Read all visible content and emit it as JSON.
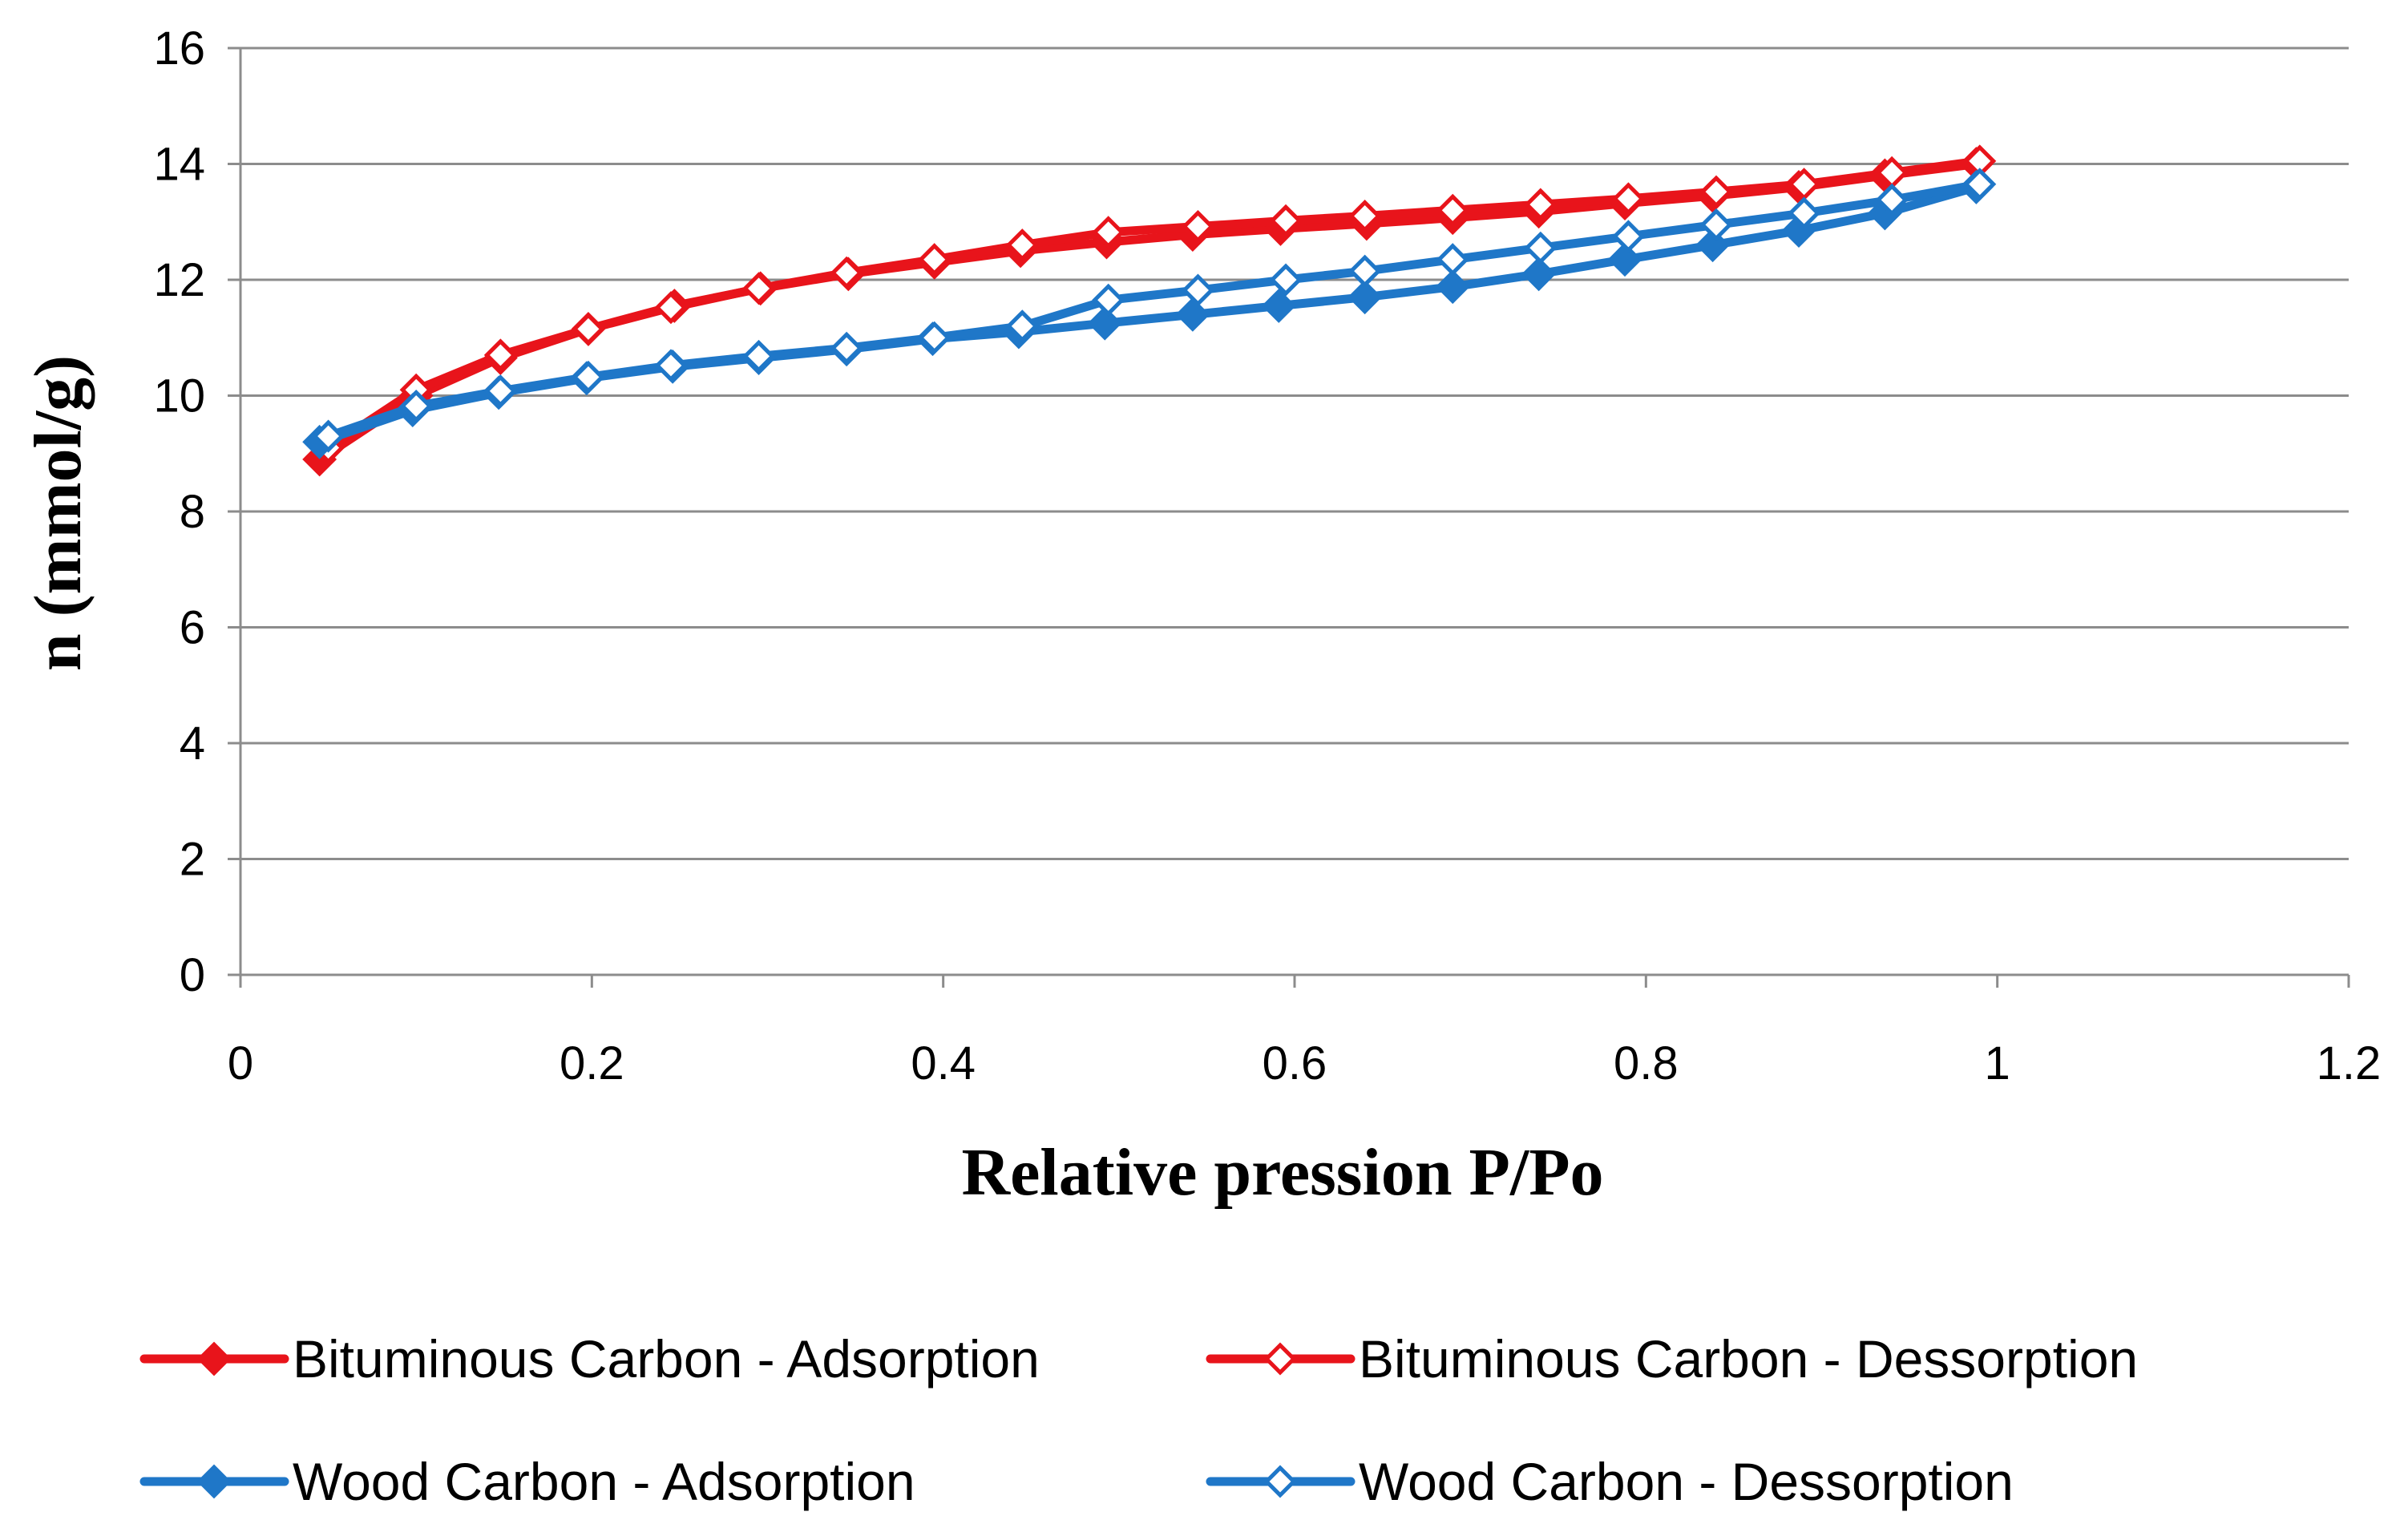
{
  "chart_data": {
    "type": "line",
    "title": "",
    "xlabel": "Relative pression P/Po",
    "ylabel": "n (mmol/g)",
    "xlim": [
      0,
      1.2
    ],
    "ylim": [
      0,
      16
    ],
    "xticks": [
      0,
      0.2,
      0.4,
      0.6,
      0.8,
      1,
      1.2
    ],
    "yticks": [
      0,
      2,
      4,
      6,
      8,
      10,
      12,
      14,
      16
    ],
    "xtick_labels": [
      "0",
      "0.2",
      "0.4",
      "0.6",
      "0.8",
      "1",
      "1.2"
    ],
    "ytick_labels": [
      "0",
      "2",
      "4",
      "6",
      "8",
      "10",
      "12",
      "14",
      "16"
    ],
    "grid": true,
    "legend_position": "bottom",
    "series": [
      {
        "name": "Bituminous Carbon - Adsorption",
        "color": "#e8141b",
        "marker": "filled-diamond",
        "x": [
          0.045,
          0.1,
          0.148,
          0.198,
          0.247,
          0.296,
          0.346,
          0.395,
          0.444,
          0.493,
          0.542,
          0.592,
          0.641,
          0.69,
          0.739,
          0.788,
          0.838,
          0.887,
          0.936,
          0.988
        ],
        "y": [
          8.9,
          10.0,
          10.65,
          11.15,
          11.55,
          11.85,
          12.1,
          12.3,
          12.5,
          12.65,
          12.78,
          12.88,
          12.97,
          13.07,
          13.18,
          13.32,
          13.45,
          13.6,
          13.8,
          14.0
        ]
      },
      {
        "name": "Bituminous Carbon - Dessorption",
        "color": "#e8141b",
        "marker": "open-diamond",
        "x": [
          0.99,
          0.94,
          0.89,
          0.84,
          0.79,
          0.74,
          0.69,
          0.64,
          0.595,
          0.545,
          0.494,
          0.445,
          0.395,
          0.345,
          0.295,
          0.245,
          0.198,
          0.148,
          0.1,
          0.05
        ],
        "y": [
          14.05,
          13.85,
          13.65,
          13.52,
          13.4,
          13.3,
          13.2,
          13.1,
          13.02,
          12.92,
          12.82,
          12.6,
          12.35,
          12.12,
          11.85,
          11.52,
          11.15,
          10.7,
          10.1,
          9.1
        ]
      },
      {
        "name": "Wood Carbon - Adsorption",
        "color": "#1f77c8",
        "marker": "filled-diamond",
        "x": [
          0.045,
          0.098,
          0.147,
          0.197,
          0.246,
          0.295,
          0.345,
          0.394,
          0.443,
          0.492,
          0.542,
          0.591,
          0.64,
          0.69,
          0.739,
          0.788,
          0.838,
          0.887,
          0.936,
          0.988
        ],
        "y": [
          9.2,
          9.75,
          10.05,
          10.3,
          10.5,
          10.65,
          10.8,
          10.98,
          11.1,
          11.25,
          11.4,
          11.55,
          11.7,
          11.88,
          12.1,
          12.35,
          12.6,
          12.85,
          13.15,
          13.6
        ]
      },
      {
        "name": "Wood Carbon - Dessorption",
        "color": "#1f77c8",
        "marker": "open-diamond",
        "x": [
          0.99,
          0.94,
          0.89,
          0.84,
          0.79,
          0.74,
          0.69,
          0.64,
          0.595,
          0.545,
          0.494,
          0.445,
          0.395,
          0.345,
          0.295,
          0.245,
          0.198,
          0.148,
          0.1,
          0.05
        ],
        "y": [
          13.65,
          13.38,
          13.15,
          12.95,
          12.75,
          12.55,
          12.35,
          12.15,
          12.0,
          11.82,
          11.65,
          11.2,
          11.0,
          10.82,
          10.68,
          10.52,
          10.32,
          10.08,
          9.82,
          9.3
        ]
      }
    ]
  }
}
